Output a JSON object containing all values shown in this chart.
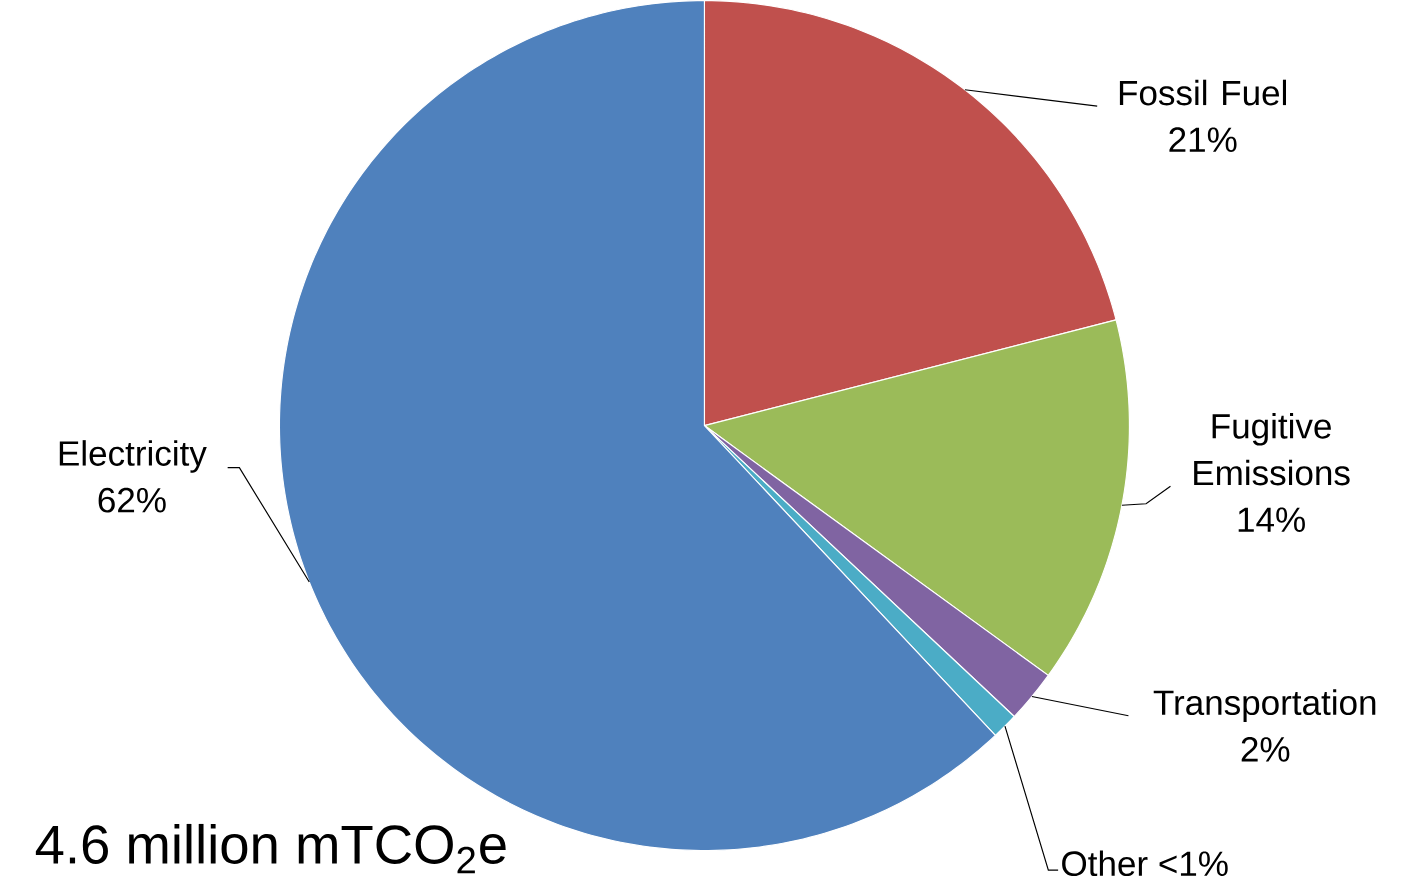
{
  "chart_data": {
    "type": "pie",
    "categories": [
      "Fossil Fuel",
      "Fugitive Emissions",
      "Transportation",
      "Other",
      "Electricity"
    ],
    "values": [
      21,
      14,
      2,
      1,
      62
    ],
    "value_labels": [
      "21%",
      "14%",
      "2%",
      "<1%",
      "62%"
    ],
    "colors": [
      "#c0504d",
      "#9bbb59",
      "#8064a2",
      "#4bacc6",
      "#4f81bd"
    ],
    "annotations": [
      "4.6 million mTCO$_{2}$e"
    ]
  }
}
